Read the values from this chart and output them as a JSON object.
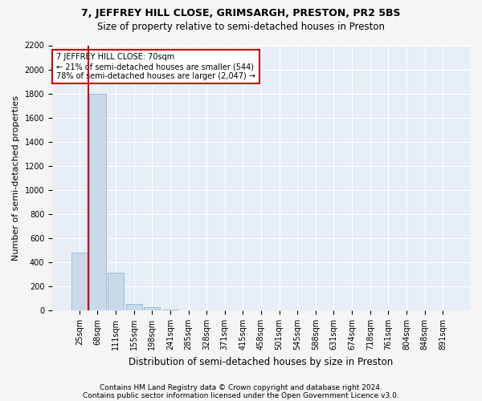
{
  "title": "7, JEFFREY HILL CLOSE, GRIMSARGH, PRESTON, PR2 5BS",
  "subtitle": "Size of property relative to semi-detached houses in Preston",
  "xlabel": "Distribution of semi-detached houses by size in Preston",
  "ylabel": "Number of semi-detached properties",
  "categories": [
    "25sqm",
    "68sqm",
    "111sqm",
    "155sqm",
    "198sqm",
    "241sqm",
    "285sqm",
    "328sqm",
    "371sqm",
    "415sqm",
    "458sqm",
    "501sqm",
    "545sqm",
    "588sqm",
    "631sqm",
    "674sqm",
    "718sqm",
    "761sqm",
    "804sqm",
    "848sqm",
    "891sqm"
  ],
  "values": [
    480,
    1800,
    310,
    55,
    25,
    10,
    2,
    0,
    0,
    0,
    0,
    0,
    0,
    0,
    0,
    0,
    0,
    0,
    0,
    0,
    0
  ],
  "bar_color": "#c9d9e8",
  "bar_edge_color": "#7bafd4",
  "vline_color": "#cc0000",
  "vline_x": 0.5,
  "annotation_title": "7 JEFFREY HILL CLOSE: 70sqm",
  "annotation_line1": "← 21% of semi-detached houses are smaller (544)",
  "annotation_line2": "78% of semi-detached houses are larger (2,047) →",
  "annotation_box_color": "#ffffff",
  "annotation_box_edge": "#cc0000",
  "ylim": [
    0,
    2200
  ],
  "yticks": [
    0,
    200,
    400,
    600,
    800,
    1000,
    1200,
    1400,
    1600,
    1800,
    2000,
    2200
  ],
  "footnote1": "Contains HM Land Registry data © Crown copyright and database right 2024.",
  "footnote2": "Contains public sector information licensed under the Open Government Licence v3.0.",
  "bg_color": "#f5f5f5",
  "plot_bg_color": "#e8eef5",
  "grid_color": "#ffffff",
  "title_fontsize": 9,
  "subtitle_fontsize": 8.5,
  "label_fontsize": 8,
  "tick_fontsize": 7,
  "footnote_fontsize": 6.5
}
